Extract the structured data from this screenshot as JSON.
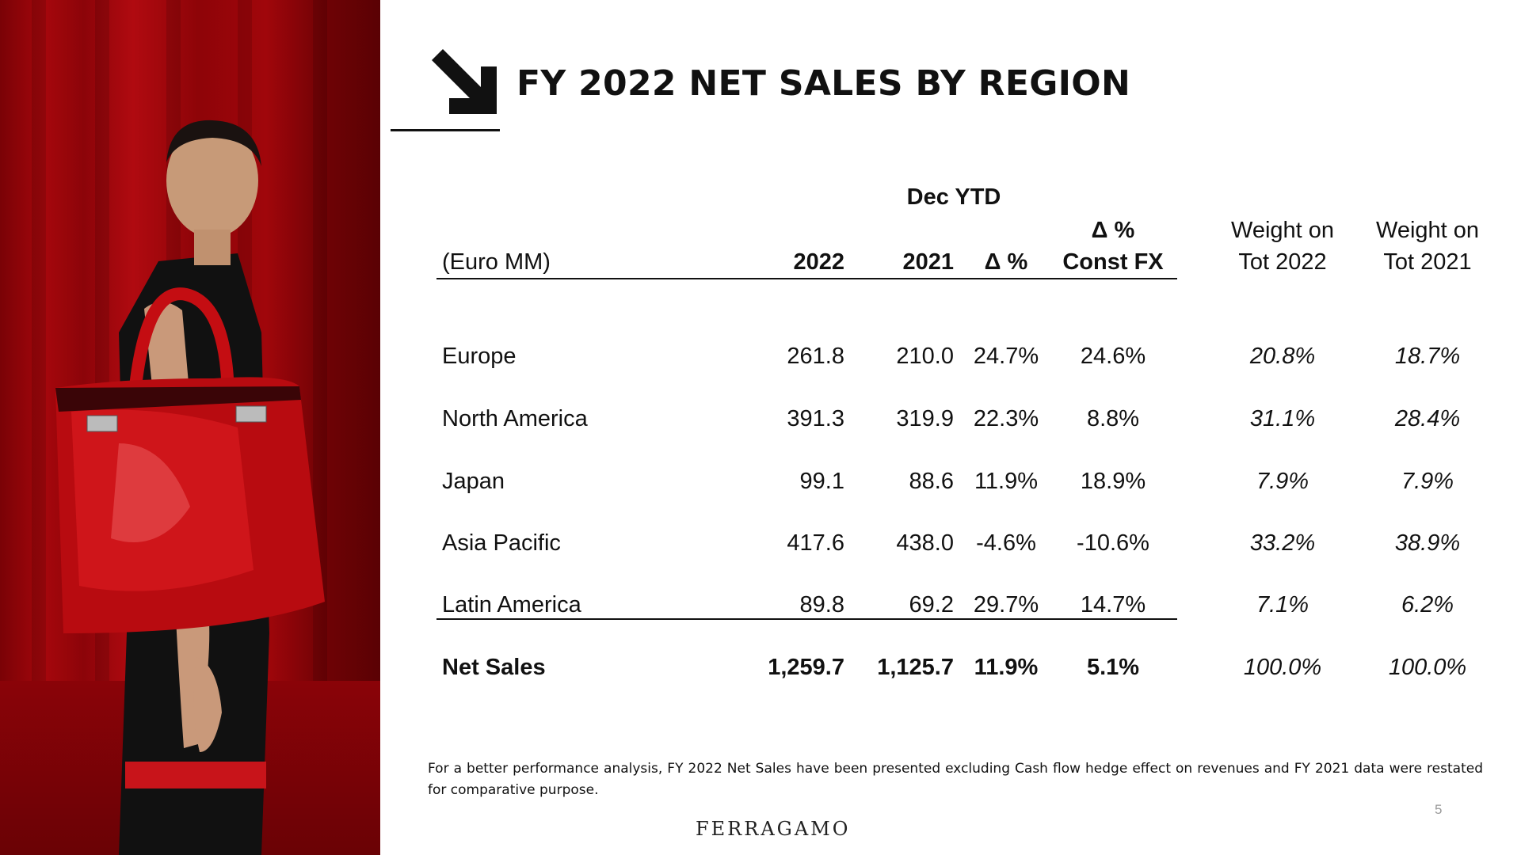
{
  "title": "FY 2022 NET SALES BY REGION",
  "table": {
    "group_header": "Dec YTD",
    "unit_label": "(Euro MM)",
    "columns": {
      "y2022": "2022",
      "y2021": "2021",
      "delta": "Δ %",
      "const_fx_line1": "Δ %",
      "const_fx_line2": "Const FX",
      "w2022_line1": "Weight on",
      "w2022_line2": "Tot 2022",
      "w2021_line1": "Weight on",
      "w2021_line2": "Tot 2021"
    },
    "rows": [
      {
        "region": "Europe",
        "y2022": "261.8",
        "y2021": "210.0",
        "delta": "24.7%",
        "const_fx": "24.6%",
        "w2022": "20.8%",
        "w2021": "18.7%"
      },
      {
        "region": "North America",
        "y2022": "391.3",
        "y2021": "319.9",
        "delta": "22.3%",
        "const_fx": "8.8%",
        "w2022": "31.1%",
        "w2021": "28.4%"
      },
      {
        "region": "Japan",
        "y2022": "99.1",
        "y2021": "88.6",
        "delta": "11.9%",
        "const_fx": "18.9%",
        "w2022": "7.9%",
        "w2021": "7.9%"
      },
      {
        "region": "Asia Pacific",
        "y2022": "417.6",
        "y2021": "438.0",
        "delta": "-4.6%",
        "const_fx": "-10.6%",
        "w2022": "33.2%",
        "w2021": "38.9%"
      },
      {
        "region": "Latin America",
        "y2022": "89.8",
        "y2021": "69.2",
        "delta": "29.7%",
        "const_fx": "14.7%",
        "w2022": "7.1%",
        "w2021": "6.2%"
      }
    ],
    "total": {
      "region": "Net Sales",
      "y2022": "1,259.7",
      "y2021": "1,125.7",
      "delta": "11.9%",
      "const_fx": "5.1%",
      "w2022": "100.0%",
      "w2021": "100.0%"
    }
  },
  "footnote": "For a better performance analysis, FY 2022 Net Sales have been presented excluding Cash flow hedge effect on revenues and FY 2021 data were restated for comparative purpose.",
  "page_number": "5",
  "brand": "FERRAGAMO",
  "colors": {
    "background_red": "#a5070c",
    "bag_red": "#c40d12",
    "text": "#111111"
  }
}
